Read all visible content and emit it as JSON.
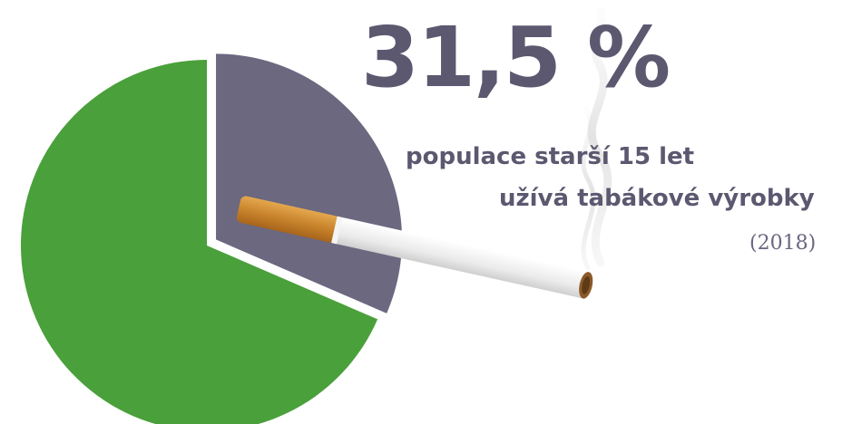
{
  "headline": {
    "value": "31,5 %",
    "line1": "populace starší 15 let",
    "line2": "užívá tabákové výrobky",
    "year": "(2018)"
  },
  "chart_data": {
    "type": "pie",
    "slices": [
      {
        "value": 31.5,
        "color": "#6b6880"
      },
      {
        "value": 68.5,
        "color": "#4aa03b"
      }
    ],
    "exploded_slice": 0
  }
}
